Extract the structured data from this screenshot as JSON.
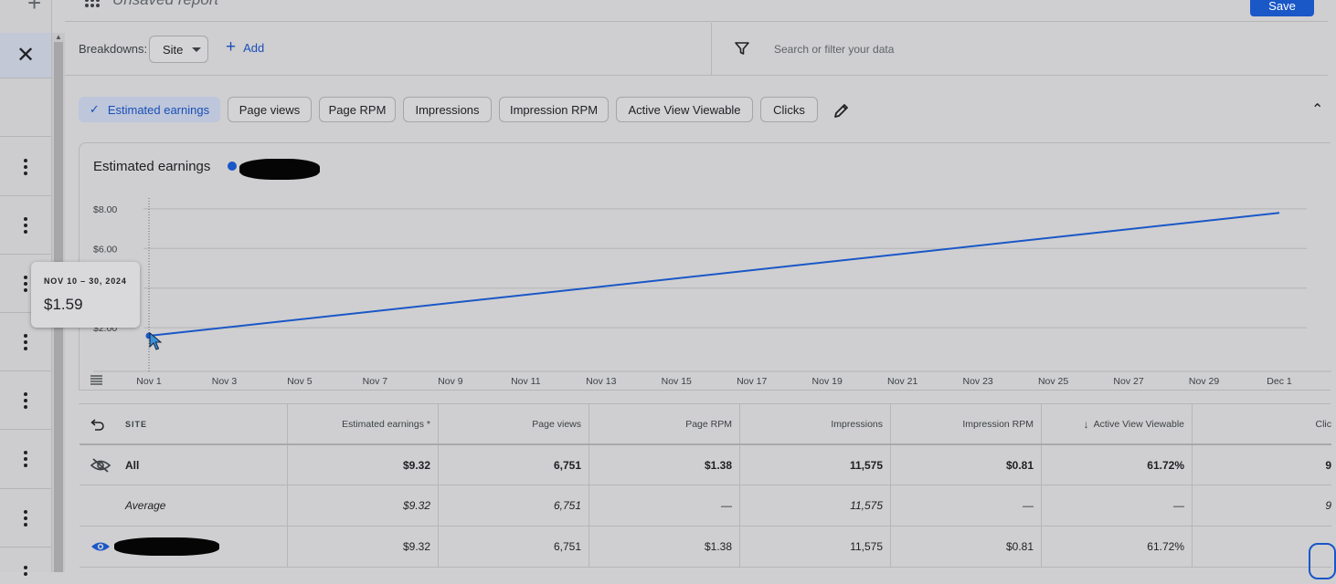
{
  "report": {
    "title": "Unsaved report",
    "save_label": "Save"
  },
  "breakdowns": {
    "label": "Breakdowns:",
    "selected": "Site",
    "add_label": "Add"
  },
  "search": {
    "placeholder": "Search or filter your data"
  },
  "metric_chips": [
    {
      "label": "Estimated earnings",
      "active": true
    },
    {
      "label": "Page views",
      "active": false
    },
    {
      "label": "Page RPM",
      "active": false
    },
    {
      "label": "Impressions",
      "active": false
    },
    {
      "label": "Impression RPM",
      "active": false
    },
    {
      "label": "Active View Viewable",
      "active": false
    },
    {
      "label": "Clicks",
      "active": false
    }
  ],
  "chart": {
    "title": "Estimated earnings",
    "series_color": "#1a57c7"
  },
  "chart_data": {
    "type": "line",
    "title": "Estimated earnings",
    "x_ticks": [
      "Nov 1",
      "Nov 3",
      "Nov 5",
      "Nov 7",
      "Nov 9",
      "Nov 11",
      "Nov 13",
      "Nov 15",
      "Nov 17",
      "Nov 19",
      "Nov 21",
      "Nov 23",
      "Nov 25",
      "Nov 27",
      "Nov 29",
      "Dec 1"
    ],
    "y_ticks": [
      "$2.00",
      "$6.00",
      "$8.00"
    ],
    "y_tick_values": [
      2,
      6,
      8
    ],
    "ylim": [
      0,
      8.5
    ],
    "gridlines": [
      2,
      4,
      6,
      8
    ],
    "series": [
      {
        "points": [
          {
            "x": "Nov 1",
            "y": 1.59
          },
          {
            "x": "Dec 1",
            "y": 7.8
          }
        ]
      }
    ],
    "grid": true
  },
  "tooltip": {
    "date": "NOV 10 – 30, 2024",
    "value": "$1.59"
  },
  "table": {
    "site_header": "SITE",
    "columns": [
      "Estimated earnings *",
      "Page views",
      "Page RPM",
      "Impressions",
      "Impression RPM",
      "Active View Viewable",
      "Clic"
    ],
    "rows": [
      {
        "label": "All",
        "values": [
          "$9.32",
          "6,751",
          "$1.38",
          "11,575",
          "$0.81",
          "61.72%",
          "9"
        ],
        "style": "bold"
      },
      {
        "label": "Average",
        "values": [
          "$9.32",
          "6,751",
          "—",
          "11,575",
          "—",
          "—",
          "9"
        ],
        "style": "italic"
      },
      {
        "label": "",
        "values": [
          "$9.32",
          "6,751",
          "$1.38",
          "11,575",
          "$0.81",
          "61.72%",
          ""
        ],
        "style": "normal"
      }
    ]
  },
  "icons": {
    "close": "close-icon",
    "filter": "filter-icon",
    "pencil": "pencil-icon",
    "undo": "undo-icon",
    "hidden": "eye-off-icon",
    "visible": "eye-icon"
  }
}
